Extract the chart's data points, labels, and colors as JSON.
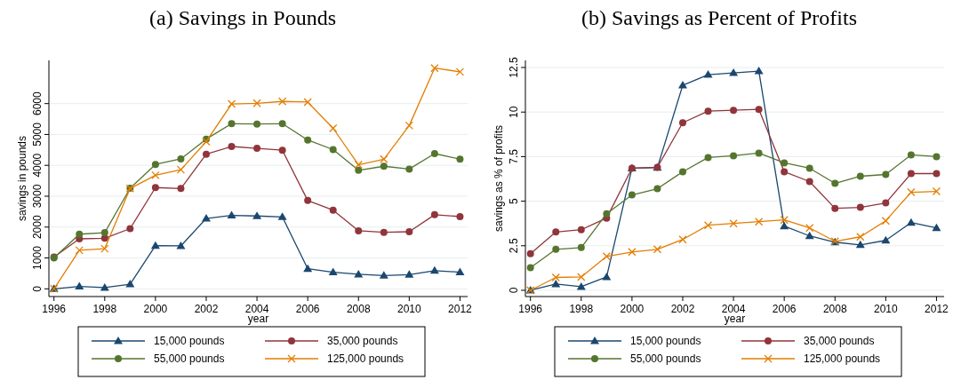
{
  "chart_data": [
    {
      "type": "line",
      "title": "(a) Savings in Pounds",
      "xlabel": "year",
      "ylabel": "savings in pounds",
      "x": [
        1996,
        1997,
        1998,
        1999,
        2000,
        2001,
        2002,
        2003,
        2004,
        2005,
        2006,
        2007,
        2008,
        2009,
        2010,
        2011,
        2012
      ],
      "xlim": [
        1995.8,
        2012.3
      ],
      "xticks": [
        1996,
        1998,
        2000,
        2002,
        2004,
        2006,
        2008,
        2010,
        2012
      ],
      "ylim": [
        -250,
        7400
      ],
      "yticks": [
        0,
        1000,
        2000,
        3000,
        4000,
        5000,
        6000
      ],
      "grid": "y",
      "legend": "bottom",
      "line_style": "solid",
      "series": [
        {
          "name": "15,000 pounds",
          "color": "#1a476f",
          "marker": "triangle",
          "values": [
            0,
            80,
            40,
            150,
            1400,
            1390,
            2280,
            2380,
            2360,
            2330,
            650,
            540,
            470,
            430,
            460,
            590,
            540
          ]
        },
        {
          "name": "35,000 pounds",
          "color": "#90353b",
          "marker": "circle",
          "values": [
            1030,
            1620,
            1640,
            1950,
            3280,
            3250,
            4360,
            4610,
            4550,
            4490,
            2860,
            2550,
            1880,
            1830,
            1850,
            2400,
            2340
          ]
        },
        {
          "name": "55,000 pounds",
          "color": "#55752f",
          "marker": "circle",
          "values": [
            1000,
            1770,
            1820,
            3260,
            4030,
            4210,
            4850,
            5350,
            5340,
            5350,
            4820,
            4510,
            3840,
            3970,
            3880,
            4380,
            4200
          ]
        },
        {
          "name": "125,000 pounds",
          "color": "#e37e00",
          "marker": "cross",
          "values": [
            0,
            1250,
            1300,
            3250,
            3680,
            3860,
            4770,
            5990,
            6010,
            6070,
            6050,
            5200,
            4020,
            4200,
            5290,
            7150,
            7030
          ]
        }
      ]
    },
    {
      "type": "line",
      "title": "(b) Savings as Percent of Profits",
      "xlabel": "year",
      "ylabel": "savings as % of profits",
      "x": [
        1996,
        1997,
        1998,
        1999,
        2000,
        2001,
        2002,
        2003,
        2004,
        2005,
        2006,
        2007,
        2008,
        2009,
        2010,
        2011,
        2012
      ],
      "xlim": [
        1995.8,
        2012.3
      ],
      "xticks": [
        1996,
        1998,
        2000,
        2002,
        2004,
        2006,
        2008,
        2010,
        2012
      ],
      "ylim": [
        -0.35,
        12.9
      ],
      "yticks": [
        0,
        2.5,
        5,
        7.5,
        10,
        12.5
      ],
      "grid": "y",
      "legend": "bottom",
      "line_style": "solid",
      "series": [
        {
          "name": "15,000 pounds",
          "color": "#1a476f",
          "marker": "triangle",
          "values": [
            0,
            0.35,
            0.2,
            0.75,
            6.85,
            6.88,
            11.5,
            12.1,
            12.2,
            12.3,
            3.6,
            3.05,
            2.7,
            2.55,
            2.8,
            3.8,
            3.5
          ]
        },
        {
          "name": "35,000 pounds",
          "color": "#90353b",
          "marker": "circle",
          "values": [
            2.05,
            3.27,
            3.4,
            4.05,
            6.85,
            6.9,
            9.4,
            10.05,
            10.1,
            10.15,
            6.65,
            6.1,
            4.6,
            4.65,
            4.9,
            6.55,
            6.55
          ]
        },
        {
          "name": "55,000 pounds",
          "color": "#55752f",
          "marker": "circle",
          "values": [
            1.27,
            2.3,
            2.4,
            4.3,
            5.35,
            5.7,
            6.65,
            7.45,
            7.55,
            7.7,
            7.15,
            6.85,
            6.0,
            6.4,
            6.5,
            7.6,
            7.5
          ]
        },
        {
          "name": "125,000 pounds",
          "color": "#e37e00",
          "marker": "cross",
          "values": [
            0,
            0.72,
            0.75,
            1.9,
            2.15,
            2.3,
            2.85,
            3.65,
            3.75,
            3.85,
            3.95,
            3.5,
            2.75,
            3.0,
            3.9,
            5.5,
            5.55
          ]
        }
      ]
    }
  ]
}
